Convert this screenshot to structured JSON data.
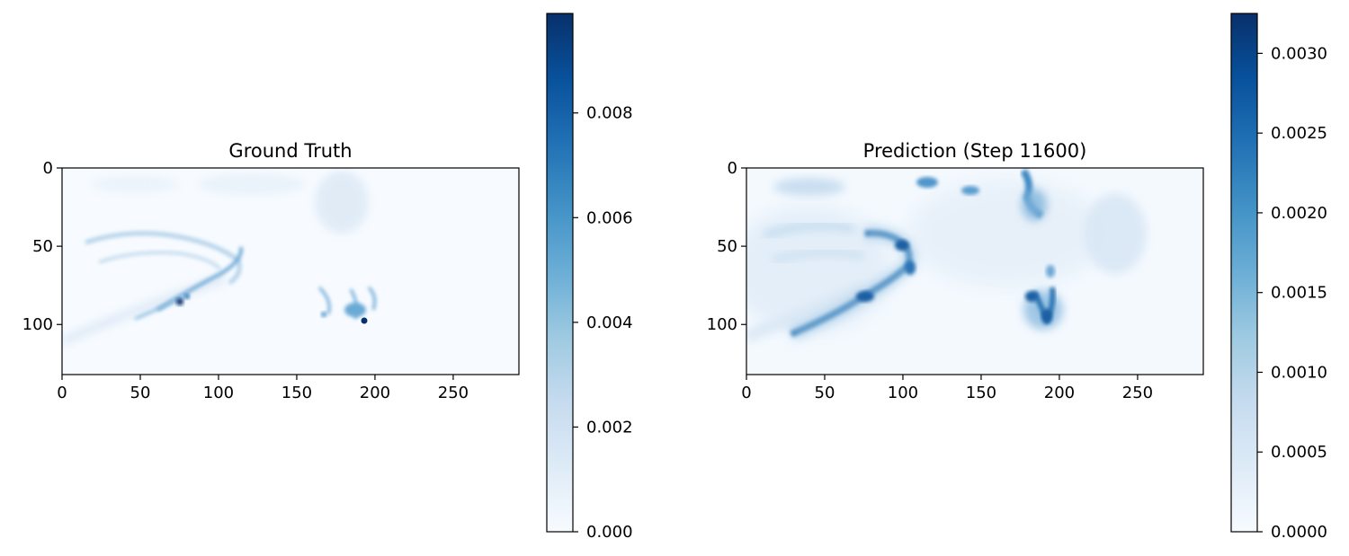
{
  "chart_data": [
    {
      "type": "heatmap",
      "title": "Ground Truth",
      "colormap": "Blues",
      "x_range": [
        0,
        292
      ],
      "y_range": [
        0,
        132
      ],
      "y_inverted": true,
      "x_ticks": [
        "0",
        "50",
        "100",
        "150",
        "200",
        "250"
      ],
      "y_ticks": [
        "0",
        "50",
        "100"
      ],
      "colorbar": {
        "range": [
          0,
          0.0099
        ],
        "ticks": [
          "0.000",
          "0.002",
          "0.004",
          "0.006",
          "0.008"
        ]
      },
      "features": [
        {
          "kind": "arc",
          "desc": "curved front",
          "intensity": 0.55
        },
        {
          "kind": "spot",
          "x": 75,
          "y": 85,
          "intensity": 0.95
        },
        {
          "kind": "spot",
          "x": 193,
          "y": 98,
          "intensity": 1.0
        },
        {
          "kind": "cluster",
          "x": 185,
          "y": 88,
          "intensity": 0.5
        },
        {
          "kind": "plume",
          "x": 178,
          "y": 30,
          "intensity": 0.25
        }
      ]
    },
    {
      "type": "heatmap",
      "title": "Prediction (Step 11600)",
      "colormap": "Blues",
      "x_range": [
        0,
        292
      ],
      "y_range": [
        0,
        132
      ],
      "y_inverted": true,
      "x_ticks": [
        "0",
        "50",
        "100",
        "150",
        "200",
        "250"
      ],
      "y_ticks": [
        "0",
        "50",
        "100"
      ],
      "colorbar": {
        "range": [
          0,
          0.00325
        ],
        "ticks": [
          "0.0000",
          "0.0005",
          "0.0010",
          "0.0015",
          "0.0020",
          "0.0025",
          "0.0030"
        ]
      },
      "features": [
        {
          "kind": "arc",
          "desc": "curved front",
          "intensity": 0.9
        },
        {
          "kind": "cluster",
          "x": 188,
          "y": 88,
          "intensity": 0.8
        },
        {
          "kind": "plume",
          "x": 180,
          "y": 25,
          "intensity": 0.7
        },
        {
          "kind": "spot",
          "x": 115,
          "y": 8,
          "intensity": 0.6
        },
        {
          "kind": "spot",
          "x": 143,
          "y": 15,
          "intensity": 0.55
        }
      ]
    }
  ],
  "colors": {
    "blues_low": "#f7fbff",
    "blues_mid": "#6baed6",
    "blues_high": "#08306b"
  }
}
